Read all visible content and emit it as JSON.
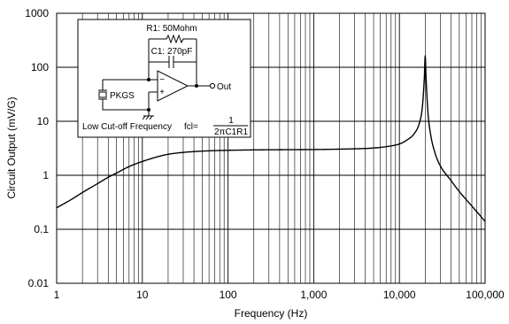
{
  "chart_data": {
    "type": "line",
    "title": "",
    "xlabel": "Frequency (Hz)",
    "ylabel": "Circuit Output (mV/G)",
    "x_scale": "log",
    "y_scale": "log",
    "xlim": [
      1,
      100000
    ],
    "ylim": [
      0.01,
      1000
    ],
    "x_ticks": [
      1,
      10,
      100,
      1000,
      10000,
      100000
    ],
    "x_tick_labels": [
      "1",
      "10",
      "100",
      "1,000",
      "10,000",
      "100,000"
    ],
    "y_ticks": [
      0.01,
      0.1,
      1,
      10,
      100,
      1000
    ],
    "y_tick_labels": [
      "0.01",
      "0.1",
      "1",
      "10",
      "100",
      "1000"
    ],
    "grid": true,
    "series": [
      {
        "name": "",
        "color": "#000000",
        "x": [
          1,
          1.5,
          2,
          3,
          4,
          5,
          7,
          10,
          15,
          20,
          30,
          50,
          100,
          200,
          500,
          1000,
          2000,
          5000,
          8000,
          10000,
          12000,
          15000,
          17000,
          18500,
          19500,
          20000,
          20500,
          21500,
          23000,
          26000,
          30000,
          40000,
          50000,
          70000,
          100000
        ],
        "y": [
          0.25,
          0.36,
          0.48,
          0.7,
          0.92,
          1.1,
          1.45,
          1.8,
          2.2,
          2.45,
          2.65,
          2.8,
          2.9,
          2.95,
          2.98,
          3.0,
          3.05,
          3.2,
          3.5,
          3.8,
          4.4,
          6.0,
          9.0,
          18.0,
          60.0,
          160.0,
          60.0,
          15.0,
          6.0,
          2.6,
          1.5,
          0.8,
          0.5,
          0.27,
          0.14
        ]
      }
    ]
  },
  "inset": {
    "r1_label": "R1: 50Mohm",
    "c1_label": "C1: 270pF",
    "source_label": "PKGS",
    "minus_sign": "−",
    "plus_sign": "+",
    "out_label": "Out",
    "caption": "Low Cut-off Frequency",
    "formula_prefix": "fcl=",
    "formula_numerator": "1",
    "formula_denominator": "2πC1R1"
  }
}
